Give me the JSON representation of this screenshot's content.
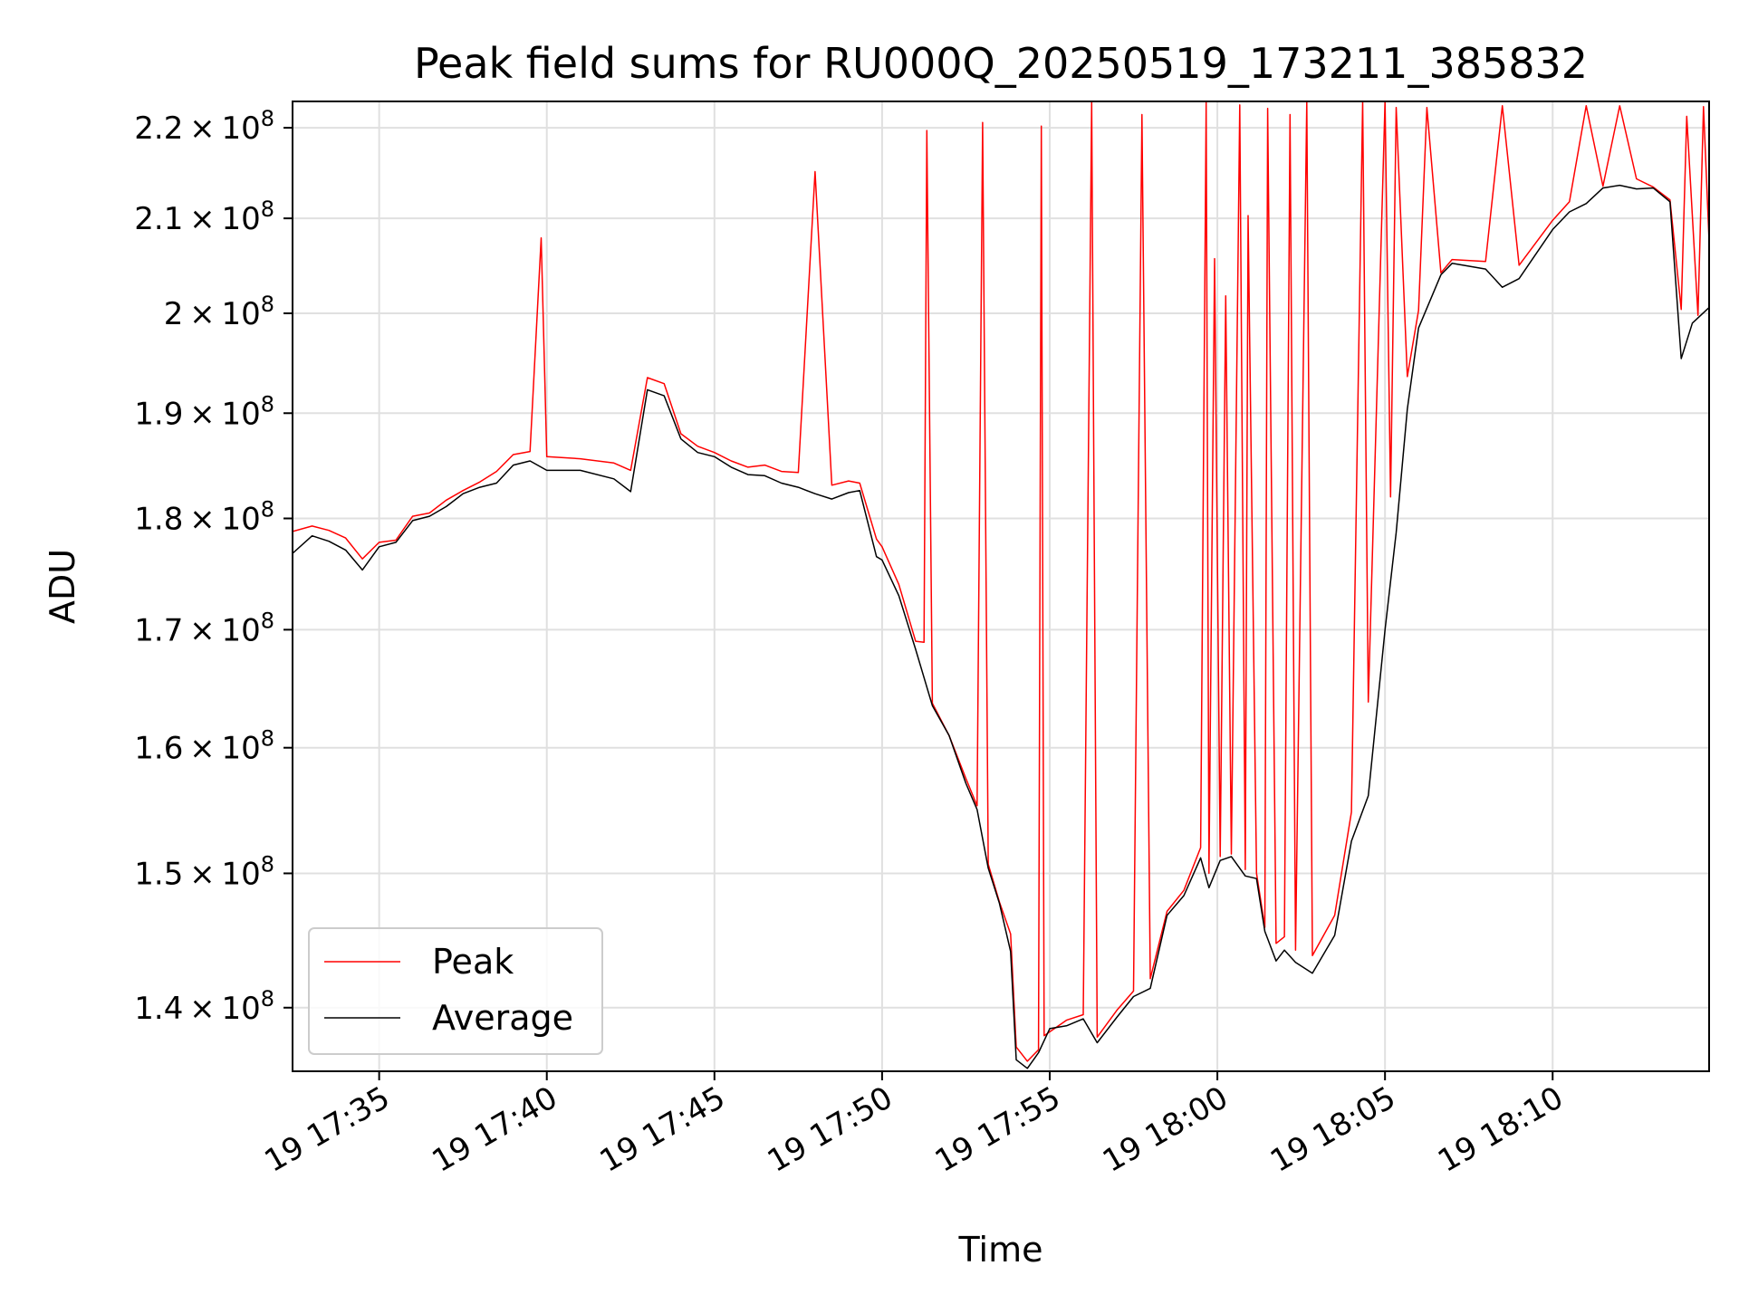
{
  "chart_data": {
    "type": "line",
    "title": "Peak field sums for RU000Q_20250519_173211_385832",
    "xlabel": "Time",
    "ylabel": "ADU",
    "y_scale": "log",
    "ylim": [
      135500000,
      223000000
    ],
    "xlim": [
      "2025-05-19 17:32:25",
      "2025-05-19 18:14:40"
    ],
    "grid": true,
    "legend_position": "lower-left",
    "x_ticks": [
      {
        "t": "2025-05-19 17:35:00",
        "label": "19 17:35"
      },
      {
        "t": "2025-05-19 17:40:00",
        "label": "19 17:40"
      },
      {
        "t": "2025-05-19 17:45:00",
        "label": "19 17:45"
      },
      {
        "t": "2025-05-19 17:50:00",
        "label": "19 17:50"
      },
      {
        "t": "2025-05-19 17:55:00",
        "label": "19 17:55"
      },
      {
        "t": "2025-05-19 18:00:00",
        "label": "19 18:00"
      },
      {
        "t": "2025-05-19 18:05:00",
        "label": "19 18:05"
      },
      {
        "t": "2025-05-19 18:10:00",
        "label": "19 18:10"
      }
    ],
    "y_ticks": [
      {
        "value": 140000000,
        "mantissa": "1.4",
        "base": "10",
        "exp": "8"
      },
      {
        "value": 150000000,
        "mantissa": "1.5",
        "base": "10",
        "exp": "8"
      },
      {
        "value": 160000000,
        "mantissa": "1.6",
        "base": "10",
        "exp": "8"
      },
      {
        "value": 170000000,
        "mantissa": "1.7",
        "base": "10",
        "exp": "8"
      },
      {
        "value": 180000000,
        "mantissa": "1.8",
        "base": "10",
        "exp": "8"
      },
      {
        "value": 190000000,
        "mantissa": "1.9",
        "base": "10",
        "exp": "8"
      },
      {
        "value": 200000000,
        "mantissa": "2",
        "base": "10",
        "exp": "8"
      },
      {
        "value": 210000000,
        "mantissa": "2.1",
        "base": "10",
        "exp": "8"
      },
      {
        "value": 220000000,
        "mantissa": "2.2",
        "base": "10",
        "exp": "8"
      }
    ],
    "series": [
      {
        "name": "Peak",
        "color": "#ff0000",
        "points": [
          [
            "2025-05-19 17:32:25",
            178800000
          ],
          [
            "2025-05-19 17:33:00",
            179300000
          ],
          [
            "2025-05-19 17:33:30",
            178900000
          ],
          [
            "2025-05-19 17:34:00",
            178200000
          ],
          [
            "2025-05-19 17:34:30",
            176300000
          ],
          [
            "2025-05-19 17:35:00",
            177800000
          ],
          [
            "2025-05-19 17:35:30",
            178000000
          ],
          [
            "2025-05-19 17:36:00",
            180200000
          ],
          [
            "2025-05-19 17:36:30",
            180500000
          ],
          [
            "2025-05-19 17:37:00",
            181700000
          ],
          [
            "2025-05-19 17:37:30",
            182600000
          ],
          [
            "2025-05-19 17:38:00",
            183400000
          ],
          [
            "2025-05-19 17:38:30",
            184400000
          ],
          [
            "2025-05-19 17:39:00",
            186000000
          ],
          [
            "2025-05-19 17:39:30",
            186300000
          ],
          [
            "2025-05-19 17:39:50",
            207900000
          ],
          [
            "2025-05-19 17:40:00",
            185800000
          ],
          [
            "2025-05-19 17:41:00",
            185600000
          ],
          [
            "2025-05-19 17:42:00",
            185200000
          ],
          [
            "2025-05-19 17:42:30",
            184500000
          ],
          [
            "2025-05-19 17:43:00",
            193500000
          ],
          [
            "2025-05-19 17:43:30",
            192900000
          ],
          [
            "2025-05-19 17:44:00",
            188000000
          ],
          [
            "2025-05-19 17:44:30",
            186800000
          ],
          [
            "2025-05-19 17:45:00",
            186200000
          ],
          [
            "2025-05-19 17:45:30",
            185400000
          ],
          [
            "2025-05-19 17:46:00",
            184800000
          ],
          [
            "2025-05-19 17:46:30",
            185000000
          ],
          [
            "2025-05-19 17:47:00",
            184400000
          ],
          [
            "2025-05-19 17:47:30",
            184300000
          ],
          [
            "2025-05-19 17:48:00",
            215100000
          ],
          [
            "2025-05-19 17:48:30",
            183100000
          ],
          [
            "2025-05-19 17:49:00",
            183500000
          ],
          [
            "2025-05-19 17:49:20",
            183300000
          ],
          [
            "2025-05-19 17:49:50",
            178100000
          ],
          [
            "2025-05-19 17:50:00",
            177400000
          ],
          [
            "2025-05-19 17:50:30",
            174000000
          ],
          [
            "2025-05-19 17:51:00",
            169000000
          ],
          [
            "2025-05-19 17:51:15",
            168900000
          ],
          [
            "2025-05-19 17:51:20",
            219700000
          ],
          [
            "2025-05-19 17:51:30",
            163700000
          ],
          [
            "2025-05-19 17:52:00",
            161000000
          ],
          [
            "2025-05-19 17:52:30",
            157500000
          ],
          [
            "2025-05-19 17:52:50",
            155300000
          ],
          [
            "2025-05-19 17:53:00",
            220600000
          ],
          [
            "2025-05-19 17:53:10",
            150700000
          ],
          [
            "2025-05-19 17:53:30",
            147800000
          ],
          [
            "2025-05-19 17:53:50",
            145400000
          ],
          [
            "2025-05-19 17:54:00",
            137200000
          ],
          [
            "2025-05-19 17:54:20",
            136200000
          ],
          [
            "2025-05-19 17:54:40",
            137000000
          ],
          [
            "2025-05-19 17:54:45",
            220200000
          ],
          [
            "2025-05-19 17:54:50",
            138000000
          ],
          [
            "2025-05-19 17:55:30",
            139100000
          ],
          [
            "2025-05-19 17:56:00",
            139500000
          ],
          [
            "2025-05-19 17:56:15",
            223000000
          ],
          [
            "2025-05-19 17:56:25",
            137900000
          ],
          [
            "2025-05-19 17:57:00",
            139800000
          ],
          [
            "2025-05-19 17:57:30",
            141200000
          ],
          [
            "2025-05-19 17:57:45",
            221500000
          ],
          [
            "2025-05-19 17:58:00",
            142100000
          ],
          [
            "2025-05-19 17:58:30",
            147100000
          ],
          [
            "2025-05-19 17:59:00",
            148700000
          ],
          [
            "2025-05-19 17:59:30",
            152000000
          ],
          [
            "2025-05-19 17:59:40",
            222900000
          ],
          [
            "2025-05-19 17:59:45",
            150000000
          ],
          [
            "2025-05-19 17:59:55",
            205700000
          ],
          [
            "2025-05-19 18:00:05",
            151300000
          ],
          [
            "2025-05-19 18:00:15",
            201800000
          ],
          [
            "2025-05-19 18:00:25",
            151500000
          ],
          [
            "2025-05-19 18:00:40",
            222600000
          ],
          [
            "2025-05-19 18:00:50",
            150300000
          ],
          [
            "2025-05-19 18:00:55",
            210300000
          ],
          [
            "2025-05-19 18:01:10",
            150000000
          ],
          [
            "2025-05-19 18:01:25",
            145900000
          ],
          [
            "2025-05-19 18:01:30",
            222200000
          ],
          [
            "2025-05-19 18:01:45",
            144700000
          ],
          [
            "2025-05-19 18:02:00",
            145200000
          ],
          [
            "2025-05-19 18:02:10",
            221500000
          ],
          [
            "2025-05-19 18:02:20",
            144200000
          ],
          [
            "2025-05-19 18:02:40",
            223000000
          ],
          [
            "2025-05-19 18:02:50",
            143800000
          ],
          [
            "2025-05-19 18:03:30",
            146800000
          ],
          [
            "2025-05-19 18:04:00",
            154800000
          ],
          [
            "2025-05-19 18:04:20",
            223000000
          ],
          [
            "2025-05-19 18:04:30",
            163800000
          ],
          [
            "2025-05-19 18:05:00",
            223000000
          ],
          [
            "2025-05-19 18:05:10",
            182000000
          ],
          [
            "2025-05-19 18:05:20",
            222300000
          ],
          [
            "2025-05-19 18:05:40",
            193600000
          ],
          [
            "2025-05-19 18:06:00",
            200300000
          ],
          [
            "2025-05-19 18:06:15",
            222300000
          ],
          [
            "2025-05-19 18:06:40",
            204200000
          ],
          [
            "2025-05-19 18:07:00",
            205600000
          ],
          [
            "2025-05-19 18:08:00",
            205400000
          ],
          [
            "2025-05-19 18:08:30",
            222500000
          ],
          [
            "2025-05-19 18:09:00",
            205000000
          ],
          [
            "2025-05-19 18:10:00",
            209800000
          ],
          [
            "2025-05-19 18:10:30",
            211800000
          ],
          [
            "2025-05-19 18:11:00",
            222500000
          ],
          [
            "2025-05-19 18:11:30",
            213500000
          ],
          [
            "2025-05-19 18:12:00",
            222500000
          ],
          [
            "2025-05-19 18:12:30",
            214300000
          ],
          [
            "2025-05-19 18:13:00",
            213400000
          ],
          [
            "2025-05-19 18:13:30",
            212000000
          ],
          [
            "2025-05-19 18:13:50",
            200400000
          ],
          [
            "2025-05-19 18:14:00",
            221300000
          ],
          [
            "2025-05-19 18:14:20",
            199800000
          ],
          [
            "2025-05-19 18:14:30",
            222400000
          ],
          [
            "2025-05-19 18:14:40",
            207500000
          ]
        ]
      },
      {
        "name": "Average",
        "color": "#000000",
        "points": [
          [
            "2025-05-19 17:32:25",
            176800000
          ],
          [
            "2025-05-19 17:33:00",
            178400000
          ],
          [
            "2025-05-19 17:33:30",
            177900000
          ],
          [
            "2025-05-19 17:34:00",
            177100000
          ],
          [
            "2025-05-19 17:34:30",
            175300000
          ],
          [
            "2025-05-19 17:35:00",
            177400000
          ],
          [
            "2025-05-19 17:35:30",
            177800000
          ],
          [
            "2025-05-19 17:36:00",
            179800000
          ],
          [
            "2025-05-19 17:36:30",
            180200000
          ],
          [
            "2025-05-19 17:37:00",
            181100000
          ],
          [
            "2025-05-19 17:37:30",
            182300000
          ],
          [
            "2025-05-19 17:38:00",
            182900000
          ],
          [
            "2025-05-19 17:38:30",
            183300000
          ],
          [
            "2025-05-19 17:39:00",
            185000000
          ],
          [
            "2025-05-19 17:39:30",
            185400000
          ],
          [
            "2025-05-19 17:40:00",
            184500000
          ],
          [
            "2025-05-19 17:41:00",
            184500000
          ],
          [
            "2025-05-19 17:42:00",
            183700000
          ],
          [
            "2025-05-19 17:42:30",
            182500000
          ],
          [
            "2025-05-19 17:43:00",
            192300000
          ],
          [
            "2025-05-19 17:43:30",
            191700000
          ],
          [
            "2025-05-19 17:44:00",
            187500000
          ],
          [
            "2025-05-19 17:44:30",
            186200000
          ],
          [
            "2025-05-19 17:45:00",
            185800000
          ],
          [
            "2025-05-19 17:45:30",
            184800000
          ],
          [
            "2025-05-19 17:46:00",
            184100000
          ],
          [
            "2025-05-19 17:46:30",
            184000000
          ],
          [
            "2025-05-19 17:47:00",
            183300000
          ],
          [
            "2025-05-19 17:47:30",
            182900000
          ],
          [
            "2025-05-19 17:48:00",
            182300000
          ],
          [
            "2025-05-19 17:48:30",
            181800000
          ],
          [
            "2025-05-19 17:49:00",
            182400000
          ],
          [
            "2025-05-19 17:49:20",
            182600000
          ],
          [
            "2025-05-19 17:49:50",
            176500000
          ],
          [
            "2025-05-19 17:50:00",
            176200000
          ],
          [
            "2025-05-19 17:50:30",
            173000000
          ],
          [
            "2025-05-19 17:51:00",
            168300000
          ],
          [
            "2025-05-19 17:51:30",
            163500000
          ],
          [
            "2025-05-19 17:52:00",
            161000000
          ],
          [
            "2025-05-19 17:52:30",
            157100000
          ],
          [
            "2025-05-19 17:52:50",
            155000000
          ],
          [
            "2025-05-19 17:53:10",
            150400000
          ],
          [
            "2025-05-19 17:53:30",
            147700000
          ],
          [
            "2025-05-19 17:53:50",
            144100000
          ],
          [
            "2025-05-19 17:54:00",
            136300000
          ],
          [
            "2025-05-19 17:54:20",
            135700000
          ],
          [
            "2025-05-19 17:54:40",
            136800000
          ],
          [
            "2025-05-19 17:55:00",
            138500000
          ],
          [
            "2025-05-19 17:55:30",
            138700000
          ],
          [
            "2025-05-19 17:56:00",
            139200000
          ],
          [
            "2025-05-19 17:56:25",
            137500000
          ],
          [
            "2025-05-19 17:57:00",
            139300000
          ],
          [
            "2025-05-19 17:57:30",
            140800000
          ],
          [
            "2025-05-19 17:58:00",
            141400000
          ],
          [
            "2025-05-19 17:58:30",
            146800000
          ],
          [
            "2025-05-19 17:59:00",
            148300000
          ],
          [
            "2025-05-19 17:59:30",
            151200000
          ],
          [
            "2025-05-19 17:59:45",
            148900000
          ],
          [
            "2025-05-19 18:00:05",
            151000000
          ],
          [
            "2025-05-19 18:00:25",
            151300000
          ],
          [
            "2025-05-19 18:00:50",
            149800000
          ],
          [
            "2025-05-19 18:01:10",
            149600000
          ],
          [
            "2025-05-19 18:01:25",
            145600000
          ],
          [
            "2025-05-19 18:01:45",
            143400000
          ],
          [
            "2025-05-19 18:02:00",
            144200000
          ],
          [
            "2025-05-19 18:02:20",
            143300000
          ],
          [
            "2025-05-19 18:02:50",
            142500000
          ],
          [
            "2025-05-19 18:03:30",
            145300000
          ],
          [
            "2025-05-19 18:04:00",
            152500000
          ],
          [
            "2025-05-19 18:04:30",
            156100000
          ],
          [
            "2025-05-19 18:05:00",
            170000000
          ],
          [
            "2025-05-19 18:05:20",
            178700000
          ],
          [
            "2025-05-19 18:05:40",
            190400000
          ],
          [
            "2025-05-19 18:06:00",
            198500000
          ],
          [
            "2025-05-19 18:06:40",
            204000000
          ],
          [
            "2025-05-19 18:07:00",
            205200000
          ],
          [
            "2025-05-19 18:08:00",
            204600000
          ],
          [
            "2025-05-19 18:08:30",
            202700000
          ],
          [
            "2025-05-19 18:09:00",
            203600000
          ],
          [
            "2025-05-19 18:10:00",
            208800000
          ],
          [
            "2025-05-19 18:10:30",
            210700000
          ],
          [
            "2025-05-19 18:11:00",
            211600000
          ],
          [
            "2025-05-19 18:11:30",
            213300000
          ],
          [
            "2025-05-19 18:12:00",
            213600000
          ],
          [
            "2025-05-19 18:12:30",
            213200000
          ],
          [
            "2025-05-19 18:13:00",
            213300000
          ],
          [
            "2025-05-19 18:13:30",
            211800000
          ],
          [
            "2025-05-19 18:13:50",
            195400000
          ],
          [
            "2025-05-19 18:14:10",
            199000000
          ],
          [
            "2025-05-19 18:14:40",
            200600000
          ]
        ]
      }
    ]
  }
}
